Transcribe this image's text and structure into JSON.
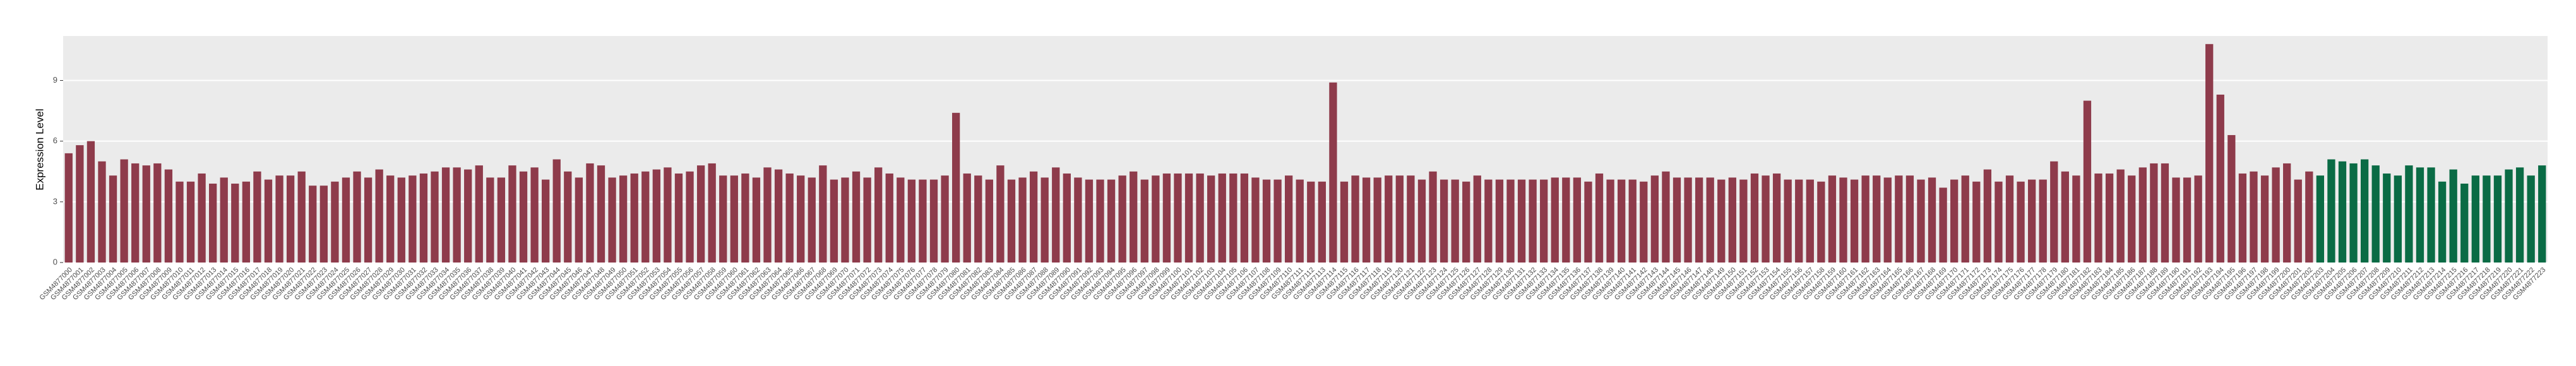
{
  "chart_data": {
    "type": "bar",
    "y_label": "Expression Level",
    "categories": [
      "GSM4877000",
      "GSM4877001",
      "GSM4877002",
      "GSM4877003",
      "GSM4877004",
      "GSM4877005",
      "GSM4877006",
      "GSM4877007",
      "GSM4877008",
      "GSM4877009",
      "GSM4877010",
      "GSM4877011",
      "GSM4877012",
      "GSM4877013",
      "GSM4877014",
      "GSM4877015",
      "GSM4877016",
      "GSM4877017",
      "GSM4877018",
      "GSM4877019",
      "GSM4877020",
      "GSM4877021",
      "GSM4877022",
      "GSM4877023",
      "GSM4877024",
      "GSM4877025",
      "GSM4877026",
      "GSM4877027",
      "GSM4877028",
      "GSM4877029",
      "GSM4877030",
      "GSM4877031",
      "GSM4877032",
      "GSM4877033",
      "GSM4877034",
      "GSM4877035",
      "GSM4877036",
      "GSM4877037",
      "GSM4877038",
      "GSM4877039",
      "GSM4877040",
      "GSM4877041",
      "GSM4877042",
      "GSM4877043",
      "GSM4877044",
      "GSM4877045",
      "GSM4877046",
      "GSM4877047",
      "GSM4877048",
      "GSM4877049",
      "GSM4877050",
      "GSM4877051",
      "GSM4877052",
      "GSM4877053",
      "GSM4877054",
      "GSM4877055",
      "GSM4877056",
      "GSM4877057",
      "GSM4877058",
      "GSM4877059",
      "GSM4877060",
      "GSM4877061",
      "GSM4877062",
      "GSM4877063",
      "GSM4877064",
      "GSM4877065",
      "GSM4877066",
      "GSM4877067",
      "GSM4877068",
      "GSM4877069",
      "GSM4877070",
      "GSM4877071",
      "GSM4877072",
      "GSM4877073",
      "GSM4877074",
      "GSM4877075",
      "GSM4877076",
      "GSM4877077",
      "GSM4877078",
      "GSM4877079",
      "GSM4877080",
      "GSM4877081",
      "GSM4877082",
      "GSM4877083",
      "GSM4877084",
      "GSM4877085",
      "GSM4877086",
      "GSM4877087",
      "GSM4877088",
      "GSM4877089",
      "GSM4877090",
      "GSM4877091",
      "GSM4877092",
      "GSM4877093",
      "GSM4877094",
      "GSM4877095",
      "GSM4877096",
      "GSM4877097",
      "GSM4877098",
      "GSM4877099",
      "GSM4877100",
      "GSM4877101",
      "GSM4877102",
      "GSM4877103",
      "GSM4877104",
      "GSM4877105",
      "GSM4877106",
      "GSM4877107",
      "GSM4877108",
      "GSM4877109",
      "GSM4877110",
      "GSM4877111",
      "GSM4877112",
      "GSM4877113",
      "GSM4877114",
      "GSM4877115",
      "GSM4877116",
      "GSM4877117",
      "GSM4877118",
      "GSM4877119",
      "GSM4877120",
      "GSM4877121",
      "GSM4877122",
      "GSM4877123",
      "GSM4877124",
      "GSM4877125",
      "GSM4877126",
      "GSM4877127",
      "GSM4877128",
      "GSM4877129",
      "GSM4877130",
      "GSM4877131",
      "GSM4877132",
      "GSM4877133",
      "GSM4877134",
      "GSM4877135",
      "GSM4877136",
      "GSM4877137",
      "GSM4877138",
      "GSM4877139",
      "GSM4877140",
      "GSM4877141",
      "GSM4877142",
      "GSM4877143",
      "GSM4877144",
      "GSM4877145",
      "GSM4877146",
      "GSM4877147",
      "GSM4877148",
      "GSM4877149",
      "GSM4877150",
      "GSM4877151",
      "GSM4877152",
      "GSM4877153",
      "GSM4877154",
      "GSM4877155",
      "GSM4877156",
      "GSM4877157",
      "GSM4877158",
      "GSM4877159",
      "GSM4877160",
      "GSM4877161",
      "GSM4877162",
      "GSM4877163",
      "GSM4877164",
      "GSM4877165",
      "GSM4877166",
      "GSM4877167",
      "GSM4877168",
      "GSM4877169",
      "GSM4877170",
      "GSM4877171",
      "GSM4877172",
      "GSM4877173",
      "GSM4877174",
      "GSM4877175",
      "GSM4877176",
      "GSM4877177",
      "GSM4877178",
      "GSM4877179",
      "GSM4877180",
      "GSM4877181",
      "GSM4877182",
      "GSM4877183",
      "GSM4877184",
      "GSM4877185",
      "GSM4877186",
      "GSM4877187",
      "GSM4877188",
      "GSM4877189",
      "GSM4877190",
      "GSM4877191",
      "GSM4877192",
      "GSM4877193",
      "GSM4877194",
      "GSM4877195",
      "GSM4877196",
      "GSM4877197",
      "GSM4877198",
      "GSM4877199",
      "GSM4877200",
      "GSM4877201",
      "GSM4877202",
      "GSM4877203",
      "GSM4877204",
      "GSM4877205",
      "GSM4877206",
      "GSM4877207",
      "GSM4877208",
      "GSM4877209",
      "GSM4877210",
      "GSM4877211",
      "GSM4877212",
      "GSM4877213",
      "GSM4877214",
      "GSM4877215",
      "GSM4877216",
      "GSM4877217",
      "GSM4877218",
      "GSM4877219",
      "GSM4877220",
      "GSM4877221",
      "GSM4877222",
      "GSM4877223"
    ],
    "values": [
      5.4,
      5.8,
      6.0,
      5.0,
      4.3,
      5.1,
      4.9,
      4.8,
      4.9,
      4.6,
      4.0,
      4.0,
      4.4,
      3.9,
      4.2,
      3.9,
      4.0,
      4.5,
      4.1,
      4.3,
      4.3,
      4.5,
      3.8,
      3.8,
      4.0,
      4.2,
      4.5,
      4.2,
      4.6,
      4.3,
      4.2,
      4.3,
      4.4,
      4.5,
      4.7,
      4.7,
      4.6,
      4.8,
      4.2,
      4.2,
      4.8,
      4.5,
      4.7,
      4.1,
      5.1,
      4.5,
      4.2,
      4.9,
      4.8,
      4.2,
      4.3,
      4.4,
      4.5,
      4.6,
      4.7,
      4.4,
      4.5,
      4.8,
      4.9,
      4.3,
      4.3,
      4.4,
      4.2,
      4.7,
      4.6,
      4.4,
      4.3,
      4.2,
      4.8,
      4.1,
      4.2,
      4.5,
      4.2,
      4.7,
      4.4,
      4.2,
      4.1,
      4.1,
      4.1,
      4.3,
      7.4,
      4.4,
      4.3,
      4.1,
      4.8,
      4.1,
      4.2,
      4.5,
      4.2,
      4.7,
      4.4,
      4.2,
      4.1,
      4.1,
      4.1,
      4.3,
      4.5,
      4.1,
      4.3,
      4.4,
      4.4,
      4.4,
      4.4,
      4.3,
      4.4,
      4.4,
      4.4,
      4.2,
      4.1,
      4.1,
      4.3,
      4.1,
      4.0,
      4.0,
      8.9,
      4.0,
      4.3,
      4.2,
      4.2,
      4.3,
      4.3,
      4.3,
      4.1,
      4.5,
      4.1,
      4.1,
      4.0,
      4.3,
      4.1,
      4.1,
      4.1,
      4.1,
      4.1,
      4.1,
      4.2,
      4.2,
      4.2,
      4.0,
      4.4,
      4.1,
      4.1,
      4.1,
      4.0,
      4.3,
      4.5,
      4.2,
      4.2,
      4.2,
      4.2,
      4.1,
      4.2,
      4.1,
      4.4,
      4.3,
      4.4,
      4.1,
      4.1,
      4.1,
      4.0,
      4.3,
      4.2,
      4.1,
      4.3,
      4.3,
      4.2,
      4.3,
      4.3,
      4.1,
      4.2,
      3.7,
      4.1,
      4.3,
      4.0,
      4.6,
      4.0,
      4.3,
      4.0,
      4.1,
      4.1,
      5.0,
      4.5,
      4.3,
      8.0,
      4.4,
      4.4,
      4.6,
      4.3,
      4.7,
      4.9,
      4.9,
      4.2,
      4.2,
      4.3,
      10.8,
      8.3,
      6.3,
      4.4,
      4.5,
      4.3,
      4.7,
      4.9,
      4.1,
      4.5,
      4.3,
      5.1,
      5.0,
      4.9,
      5.1,
      4.8,
      4.4,
      4.3,
      4.8,
      4.7,
      4.7,
      4.0,
      4.6,
      3.9,
      4.3,
      4.3,
      4.3,
      4.6,
      4.7,
      4.3,
      4.8
    ],
    "color": "#8e3b4b",
    "highlight_color": "#0a6b45",
    "highlight_start_index": 203,
    "ylim": [
      0,
      11.2
    ],
    "yticks": [
      0,
      3,
      6,
      9
    ],
    "grid": true
  }
}
